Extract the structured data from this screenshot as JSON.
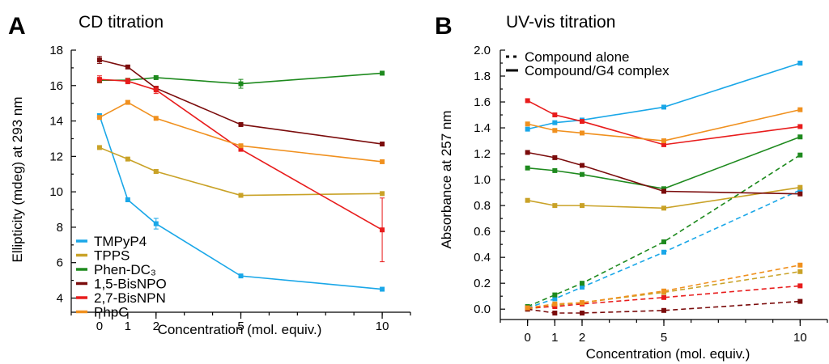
{
  "chart_data": [
    {
      "type": "line",
      "panel_letter": "A",
      "title": "CD titration",
      "xlabel": "Concentration (mol. equiv.)",
      "ylabel": "Ellipticity (mdeg) at 293 nm",
      "x": [
        0,
        1,
        2,
        5,
        10
      ],
      "x_ticks": [
        "0",
        "1",
        "2",
        "5",
        "10"
      ],
      "xlim": [
        -1,
        11
      ],
      "ylim": [
        3.2,
        18
      ],
      "y_ticks": [
        "4",
        "6",
        "8",
        "10",
        "12",
        "14",
        "16",
        "18"
      ],
      "legend_position": "bottom-left",
      "series": [
        {
          "name": "TMPyP4",
          "color": "#1aa7e8",
          "values": [
            14.3,
            9.55,
            8.2,
            5.25,
            4.5
          ],
          "errors": [
            0.1,
            0.05,
            0.3,
            0.05,
            0.05
          ]
        },
        {
          "name": "TPPS",
          "color": "#c9a227",
          "values": [
            12.5,
            11.85,
            11.15,
            9.8,
            9.9
          ],
          "errors": [
            0.05,
            0.05,
            0.1,
            0.05,
            0.05
          ]
        },
        {
          "name": "Phen-DC₃",
          "color": "#1e8a1e",
          "values": [
            16.3,
            16.3,
            16.45,
            16.1,
            16.7
          ],
          "errors": [
            0.1,
            0.1,
            0.05,
            0.25,
            0.05
          ]
        },
        {
          "name": "1,5-BisNPO",
          "color": "#7b0c0c",
          "values": [
            17.45,
            17.05,
            15.85,
            13.8,
            12.7
          ],
          "errors": [
            0.2,
            0.1,
            0.1,
            0.05,
            0.05
          ]
        },
        {
          "name": "2,7-BisNPN",
          "color": "#e81c1c",
          "values": [
            16.35,
            16.25,
            15.75,
            12.4,
            7.85
          ],
          "errors": [
            0.2,
            0.15,
            0.2,
            0.1,
            1.8
          ]
        },
        {
          "name": "PhpC",
          "color": "#f0901e",
          "values": [
            14.2,
            15.05,
            14.15,
            12.6,
            11.7
          ],
          "errors": [
            0.05,
            0.1,
            0.05,
            0.05,
            0.05
          ]
        }
      ]
    },
    {
      "type": "line",
      "panel_letter": "B",
      "title": "UV-vis titration",
      "xlabel": "Concentration (mol. equiv.)",
      "ylabel": "Absorbance at 257 nm",
      "x": [
        0,
        1,
        2,
        5,
        10
      ],
      "x_ticks": [
        "0",
        "1",
        "2",
        "5",
        "10"
      ],
      "xlim": [
        -1,
        11
      ],
      "ylim": [
        -0.08,
        2.0
      ],
      "y_ticks": [
        "0.0",
        "0.2",
        "0.4",
        "0.6",
        "0.8",
        "1.0",
        "1.2",
        "1.4",
        "1.6",
        "1.8",
        "2.0"
      ],
      "legend": [
        {
          "style": "dashed",
          "label": "Compound  alone"
        },
        {
          "style": "solid",
          "label": "Compound/G4 complex"
        }
      ],
      "legend_position": "top-left",
      "series": [
        {
          "name": "TMPyP4",
          "color": "#1aa7e8",
          "complex": [
            1.39,
            1.44,
            1.46,
            1.56,
            1.9
          ],
          "alone": [
            0.01,
            0.08,
            0.17,
            0.44,
            0.92
          ]
        },
        {
          "name": "TPPS",
          "color": "#c9a227",
          "complex": [
            0.84,
            0.8,
            0.8,
            0.78,
            0.94
          ],
          "alone": [
            0.0,
            0.03,
            0.05,
            0.13,
            0.29
          ]
        },
        {
          "name": "Phen-DC₃",
          "color": "#1e8a1e",
          "complex": [
            1.09,
            1.07,
            1.04,
            0.93,
            1.33
          ],
          "alone": [
            0.02,
            0.11,
            0.2,
            0.52,
            1.19
          ]
        },
        {
          "name": "1,5-BisNPO",
          "color": "#7b0c0c",
          "complex": [
            1.21,
            1.17,
            1.11,
            0.91,
            0.89
          ],
          "alone": [
            0.0,
            -0.03,
            -0.03,
            -0.01,
            0.06
          ]
        },
        {
          "name": "2,7-BisNPN",
          "color": "#e81c1c",
          "complex": [
            1.61,
            1.5,
            1.45,
            1.27,
            1.41
          ],
          "alone": [
            0.01,
            0.02,
            0.04,
            0.09,
            0.18
          ]
        },
        {
          "name": "PhpC",
          "color": "#f0901e",
          "complex": [
            1.43,
            1.38,
            1.36,
            1.3,
            1.54
          ],
          "alone": [
            0.01,
            0.04,
            0.05,
            0.14,
            0.34
          ]
        }
      ]
    }
  ]
}
